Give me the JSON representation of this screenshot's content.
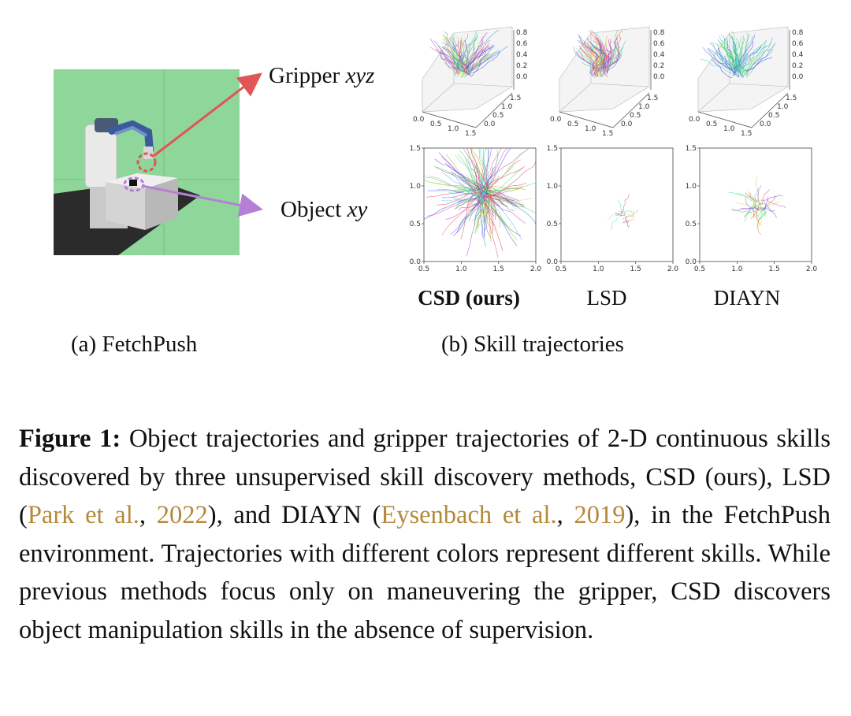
{
  "panel_a": {
    "gripper_label_prefix": "Gripper",
    "gripper_label_var": "xyz",
    "object_label_prefix": "Object",
    "object_label_var": "xy",
    "subcaption": "(a) FetchPush",
    "colors": {
      "gripper_arrow": "#e05555",
      "object_arrow": "#b57fd6",
      "background": "#8fd69a"
    }
  },
  "panel_b": {
    "subcaption": "(b) Skill trajectories",
    "methods": [
      {
        "name": "CSD (ours)",
        "emphasis": "bold"
      },
      {
        "name": "LSD",
        "emphasis": "normal"
      },
      {
        "name": "DIAYN",
        "emphasis": "normal"
      }
    ],
    "plot3d_ticks": {
      "x": [
        "0.0",
        "0.5",
        "1.0",
        "1.5"
      ],
      "y": [
        "0.0",
        "0.5",
        "1.0",
        "1.5"
      ],
      "z": [
        "0.0",
        "0.2",
        "0.4",
        "0.6",
        "0.8"
      ]
    },
    "plot2d_ticks": {
      "x": [
        "0.5",
        "1.0",
        "1.5",
        "2.0"
      ],
      "y": [
        "0.0",
        "0.5",
        "1.0",
        "1.5"
      ]
    }
  },
  "chart_data": [
    {
      "type": "line",
      "title": "",
      "description_label": "CSD (ours)",
      "panel": "object xy trajectories",
      "xlim": [
        0.5,
        2.0
      ],
      "ylim": [
        0.0,
        1.5
      ],
      "xticks": [
        0.5,
        1.0,
        1.5,
        2.0
      ],
      "yticks": [
        0.0,
        0.5,
        1.0,
        1.5
      ],
      "series": [
        {
          "center": [
            1.3,
            0.9
          ],
          "spread": 0.85,
          "count": 160
        }
      ]
    },
    {
      "type": "line",
      "title": "",
      "description_label": "LSD",
      "panel": "object xy trajectories",
      "xlim": [
        0.5,
        2.0
      ],
      "ylim": [
        0.0,
        1.5
      ],
      "xticks": [
        0.5,
        1.0,
        1.5,
        2.0
      ],
      "yticks": [
        0.0,
        0.5,
        1.0,
        1.5
      ],
      "series": [
        {
          "center": [
            1.3,
            0.6
          ],
          "spread": 0.25,
          "count": 12
        }
      ]
    },
    {
      "type": "line",
      "title": "",
      "description_label": "DIAYN",
      "panel": "object xy trajectories",
      "xlim": [
        0.5,
        2.0
      ],
      "ylim": [
        0.0,
        1.5
      ],
      "xticks": [
        0.5,
        1.0,
        1.5,
        2.0
      ],
      "yticks": [
        0.0,
        0.5,
        1.0,
        1.5
      ],
      "series": [
        {
          "center": [
            1.3,
            0.72
          ],
          "spread": 0.35,
          "count": 40
        }
      ]
    }
  ],
  "caption": {
    "label": "Figure 1:",
    "text1": " Object trajectories and gripper trajectories of 2-D continuous skills discovered by three unsupervised skill discovery methods, CSD (ours), LSD (",
    "cite1_name": "Park et al.",
    "sep1": ", ",
    "cite1_year": "2022",
    "text2": "), and DIAYN (",
    "cite2_name": "Eysenbach et al.",
    "sep2": ", ",
    "cite2_year": "2019",
    "text3": "), in the FetchPush environment. Trajectories with different colors represent different skills. While previous methods focus only on maneuvering the gripper, CSD discovers object manipulation skills in the absence of supervision."
  }
}
